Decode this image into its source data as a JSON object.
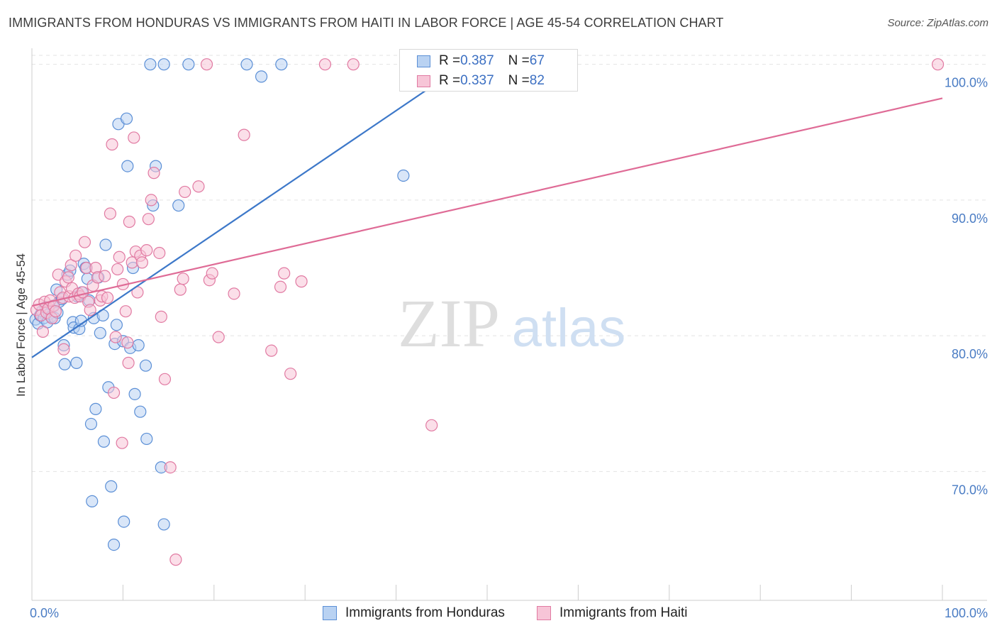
{
  "chart_data": {
    "type": "scatter",
    "title": "IMMIGRANTS FROM HONDURAS VS IMMIGRANTS FROM HAITI IN LABOR FORCE | AGE 45-54 CORRELATION CHART",
    "source": "Source: ZipAtlas.com",
    "ylabel": "In Labor Force | Age 45-54",
    "xlabel": "",
    "xlim": [
      0,
      100
    ],
    "ylim": [
      60.5,
      101.5
    ],
    "x_tick_labels": [
      "0.0%",
      "100.0%"
    ],
    "y_ticks": [
      {
        "value": 70,
        "label": "70.0%"
      },
      {
        "value": 80,
        "label": "80.0%"
      },
      {
        "value": 90,
        "label": "90.0%"
      },
      {
        "value": 100,
        "label": "100.0%"
      }
    ],
    "watermark": {
      "zip": "ZIP",
      "atlas": "atlas"
    },
    "legend_stats": [
      {
        "r_label": "R = ",
        "r_value": "0.387",
        "n_label": "N = ",
        "n_value": "67"
      },
      {
        "r_label": "R = ",
        "r_value": "0.337",
        "n_label": "N = ",
        "n_value": "82"
      }
    ],
    "series": [
      {
        "name": "Immigrants from Honduras",
        "color": "#5b8fd6",
        "fill": "#b9d2f2",
        "trend": {
          "x0": 0,
          "y0": 78.4,
          "x1": 47.5,
          "y1": 100.0
        },
        "points": [
          [
            0.4,
            81.2
          ],
          [
            0.7,
            80.9
          ],
          [
            0.9,
            81.5
          ],
          [
            1.1,
            81.8
          ],
          [
            1.3,
            81.3
          ],
          [
            1.5,
            82.1
          ],
          [
            1.7,
            81.0
          ],
          [
            1.9,
            81.6
          ],
          [
            2.1,
            81.4
          ],
          [
            2.3,
            82.2
          ],
          [
            2.5,
            81.3
          ],
          [
            2.7,
            83.4
          ],
          [
            2.8,
            81.7
          ],
          [
            3.0,
            82.5
          ],
          [
            3.3,
            82.7
          ],
          [
            3.5,
            79.3
          ],
          [
            3.6,
            77.9
          ],
          [
            3.9,
            84.5
          ],
          [
            4.2,
            84.8
          ],
          [
            4.5,
            81.0
          ],
          [
            4.6,
            80.6
          ],
          [
            4.9,
            78.0
          ],
          [
            5.0,
            82.9
          ],
          [
            5.2,
            80.5
          ],
          [
            5.4,
            81.1
          ],
          [
            5.5,
            83.2
          ],
          [
            5.7,
            85.3
          ],
          [
            5.9,
            85.0
          ],
          [
            6.1,
            84.2
          ],
          [
            6.3,
            82.6
          ],
          [
            6.5,
            73.5
          ],
          [
            6.6,
            67.8
          ],
          [
            6.8,
            81.3
          ],
          [
            7.0,
            74.6
          ],
          [
            7.3,
            84.3
          ],
          [
            7.5,
            80.2
          ],
          [
            7.8,
            81.5
          ],
          [
            7.9,
            72.2
          ],
          [
            8.1,
            86.7
          ],
          [
            8.4,
            76.2
          ],
          [
            8.7,
            68.9
          ],
          [
            9.0,
            64.6
          ],
          [
            9.1,
            79.4
          ],
          [
            9.3,
            80.8
          ],
          [
            9.5,
            95.6
          ],
          [
            10.0,
            79.6
          ],
          [
            10.1,
            66.3
          ],
          [
            10.4,
            96.0
          ],
          [
            10.5,
            92.5
          ],
          [
            10.8,
            79.1
          ],
          [
            11.1,
            85.0
          ],
          [
            11.3,
            75.7
          ],
          [
            11.7,
            79.3
          ],
          [
            11.9,
            74.4
          ],
          [
            12.5,
            77.8
          ],
          [
            12.6,
            72.4
          ],
          [
            13.3,
            89.6
          ],
          [
            13.6,
            92.5
          ],
          [
            14.2,
            70.3
          ],
          [
            14.5,
            66.1
          ],
          [
            16.1,
            89.6
          ],
          [
            13.0,
            100.0
          ],
          [
            14.5,
            100.0
          ],
          [
            17.2,
            100.0
          ],
          [
            23.6,
            100.0
          ],
          [
            25.2,
            99.1
          ],
          [
            27.4,
            100.0
          ],
          [
            40.8,
            91.8
          ]
        ]
      },
      {
        "name": "Immigrants from Haiti",
        "color": "#e17aa2",
        "fill": "#f7c5d7",
        "trend": {
          "x0": 0,
          "y0": 82.2,
          "x1": 100,
          "y1": 97.5
        },
        "points": [
          [
            0.5,
            81.9
          ],
          [
            0.8,
            82.3
          ],
          [
            1.0,
            81.5
          ],
          [
            1.2,
            80.3
          ],
          [
            1.4,
            82.5
          ],
          [
            1.6,
            81.7
          ],
          [
            1.8,
            82.0
          ],
          [
            2.0,
            82.6
          ],
          [
            2.2,
            81.3
          ],
          [
            2.4,
            82.2
          ],
          [
            2.6,
            81.8
          ],
          [
            2.9,
            84.5
          ],
          [
            3.1,
            83.2
          ],
          [
            3.4,
            82.8
          ],
          [
            3.5,
            79.0
          ],
          [
            3.7,
            84.0
          ],
          [
            4.0,
            84.3
          ],
          [
            4.1,
            82.9
          ],
          [
            4.3,
            85.2
          ],
          [
            4.4,
            83.5
          ],
          [
            4.7,
            82.8
          ],
          [
            4.8,
            85.9
          ],
          [
            5.1,
            83.1
          ],
          [
            5.3,
            82.9
          ],
          [
            5.6,
            83.2
          ],
          [
            5.8,
            86.9
          ],
          [
            6.0,
            85.0
          ],
          [
            6.2,
            82.5
          ],
          [
            6.4,
            81.9
          ],
          [
            6.7,
            83.7
          ],
          [
            7.0,
            85.0
          ],
          [
            7.2,
            84.3
          ],
          [
            7.5,
            82.6
          ],
          [
            7.7,
            82.9
          ],
          [
            8.0,
            84.4
          ],
          [
            8.3,
            82.8
          ],
          [
            8.6,
            89.0
          ],
          [
            8.8,
            94.1
          ],
          [
            9.0,
            75.8
          ],
          [
            9.2,
            79.9
          ],
          [
            9.4,
            84.9
          ],
          [
            9.6,
            85.8
          ],
          [
            9.9,
            72.1
          ],
          [
            10.0,
            83.8
          ],
          [
            10.3,
            81.8
          ],
          [
            10.5,
            79.5
          ],
          [
            10.6,
            78.0
          ],
          [
            10.7,
            88.4
          ],
          [
            11.0,
            85.4
          ],
          [
            11.2,
            94.6
          ],
          [
            11.4,
            86.2
          ],
          [
            11.6,
            83.2
          ],
          [
            11.9,
            85.9
          ],
          [
            12.1,
            85.4
          ],
          [
            12.6,
            86.3
          ],
          [
            12.8,
            88.6
          ],
          [
            13.1,
            90.0
          ],
          [
            13.4,
            92.0
          ],
          [
            14.0,
            86.1
          ],
          [
            14.2,
            81.4
          ],
          [
            14.6,
            76.8
          ],
          [
            15.2,
            70.3
          ],
          [
            15.8,
            63.5
          ],
          [
            16.3,
            83.4
          ],
          [
            16.6,
            84.2
          ],
          [
            16.8,
            90.6
          ],
          [
            18.3,
            91.0
          ],
          [
            19.5,
            84.1
          ],
          [
            19.8,
            84.6
          ],
          [
            20.5,
            79.9
          ],
          [
            22.2,
            83.1
          ],
          [
            23.3,
            94.8
          ],
          [
            26.3,
            78.9
          ],
          [
            27.3,
            83.6
          ],
          [
            27.7,
            84.6
          ],
          [
            28.4,
            77.2
          ],
          [
            29.6,
            84.0
          ],
          [
            43.9,
            73.4
          ],
          [
            19.2,
            100.0
          ],
          [
            32.2,
            100.0
          ],
          [
            35.3,
            100.0
          ],
          [
            99.5,
            100.0
          ]
        ]
      }
    ]
  }
}
